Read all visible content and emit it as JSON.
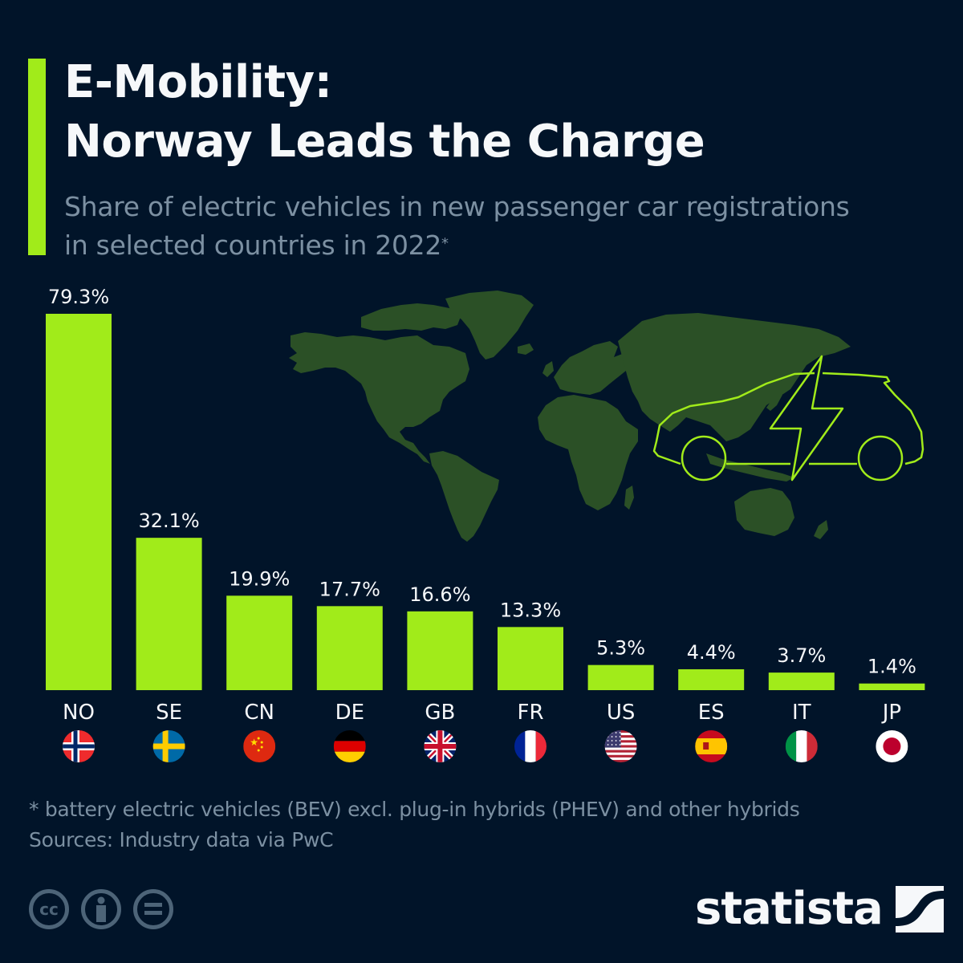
{
  "header": {
    "title_line1": "E-Mobility:",
    "title_line2": "Norway Leads the Charge",
    "subtitle_line1": "Share of electric vehicles in new passenger car registrations",
    "subtitle_line2": "in selected countries in 2022",
    "subtitle_marker": "*"
  },
  "colors": {
    "background": "#011429",
    "bar": "#a1eb1a",
    "map_land": "#2b5026",
    "accent": "#a1eb1a",
    "muted_text": "#7c90a2"
  },
  "chart_data": {
    "type": "bar",
    "title": "E-Mobility: Norway Leads the Charge",
    "subtitle": "Share of electric vehicles in new passenger car registrations in selected countries in 2022*",
    "xlabel": "",
    "ylabel": "Share of EVs in new passenger car registrations (%)",
    "ylim": [
      0,
      79.3
    ],
    "grid": false,
    "legend": "none",
    "categories": [
      "NO",
      "SE",
      "CN",
      "DE",
      "GB",
      "FR",
      "US",
      "ES",
      "IT",
      "JP"
    ],
    "values": [
      79.3,
      32.1,
      19.9,
      17.7,
      16.6,
      13.3,
      5.3,
      4.4,
      3.7,
      1.4
    ],
    "value_labels": [
      "79.3%",
      "32.1%",
      "19.9%",
      "17.7%",
      "16.6%",
      "13.3%",
      "5.3%",
      "4.4%",
      "3.7%",
      "1.4%"
    ],
    "flags": [
      "norway-flag",
      "sweden-flag",
      "china-flag",
      "germany-flag",
      "uk-flag",
      "france-flag",
      "usa-flag",
      "spain-flag",
      "italy-flag",
      "japan-flag"
    ]
  },
  "footer": {
    "note": "* battery electric vehicles (BEV) excl. plug-in hybrids (PHEV) and other hybrids",
    "source": "Sources: Industry data via PwC",
    "license_icons": [
      "cc-icon",
      "attribution-icon",
      "no-derivatives-icon"
    ],
    "license_cc_text": "cc",
    "logo_text": "statista"
  }
}
